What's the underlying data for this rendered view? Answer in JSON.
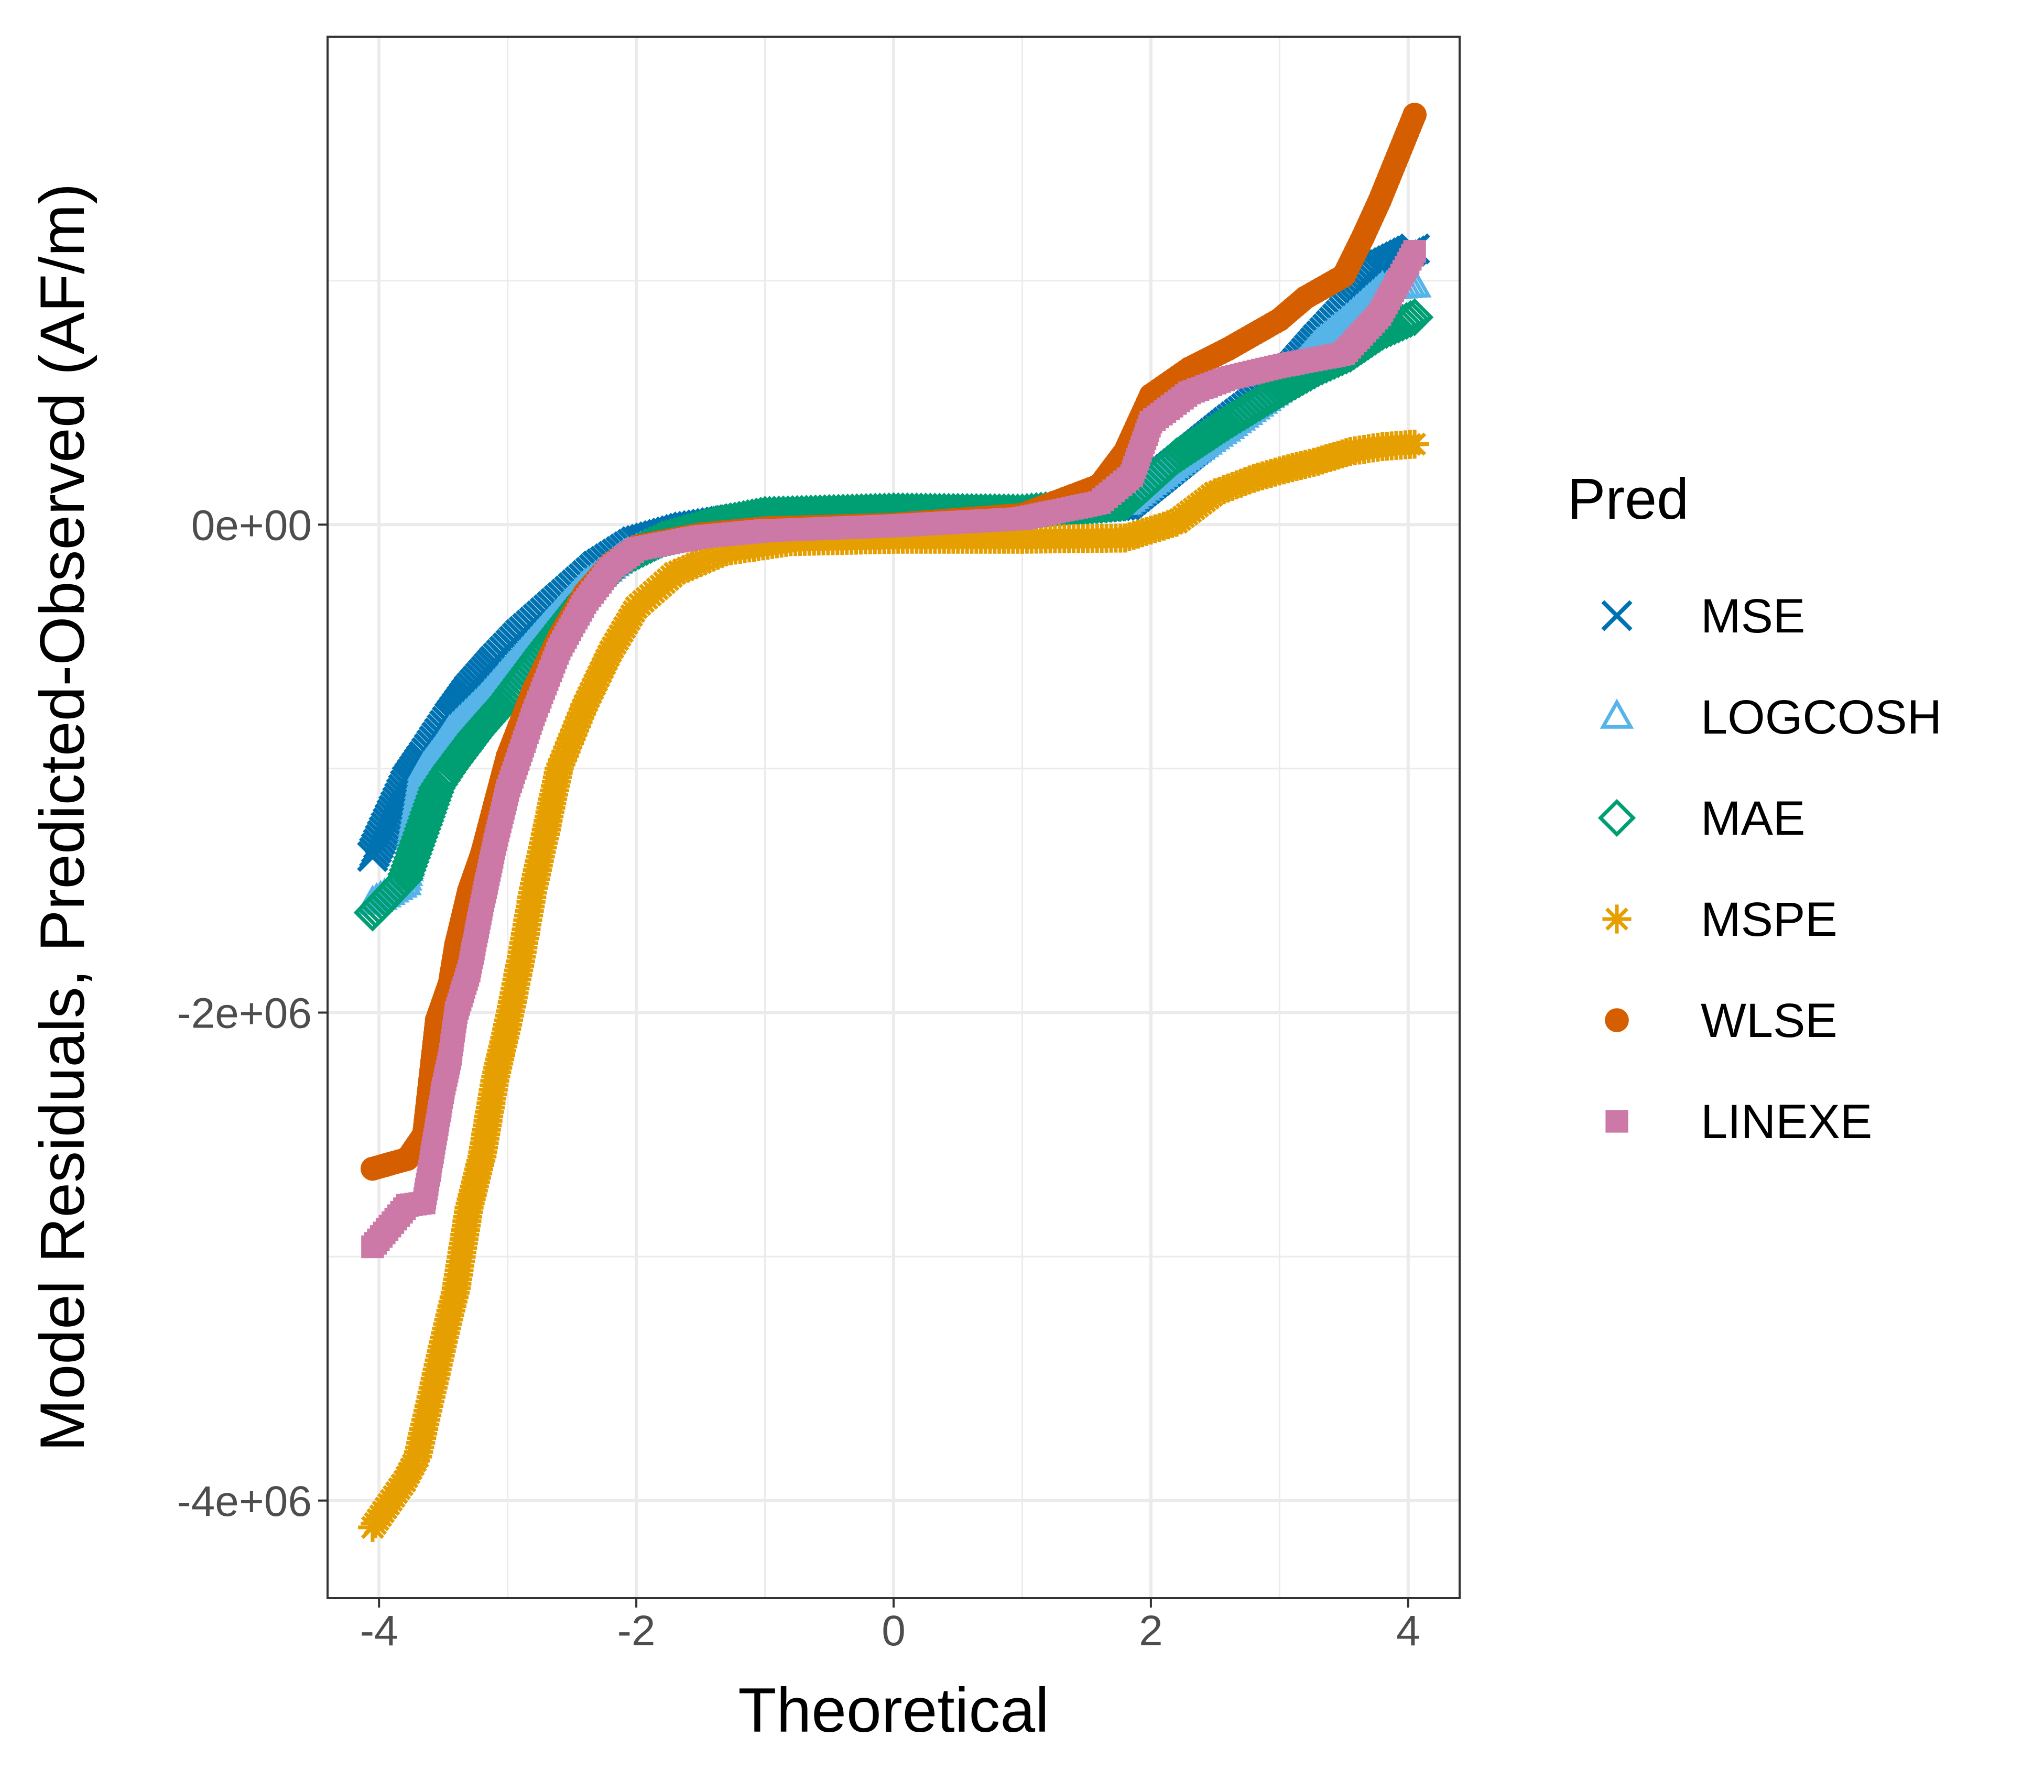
{
  "chart_data": {
    "type": "scatter",
    "title": "",
    "xlabel": "Theoretical",
    "ylabel": "Model Residuals, Predicted-Observed (AF/m)",
    "xlim": [
      -4.4,
      4.4
    ],
    "ylim": [
      -4400000,
      2000000
    ],
    "x_ticks": [
      -4,
      -2,
      0,
      2,
      4
    ],
    "x_tick_labels": [
      "-4",
      "-2",
      "0",
      "2",
      "4"
    ],
    "y_ticks": [
      0,
      -2000000,
      -4000000
    ],
    "y_tick_labels": [
      "0e+00",
      "-2e+06",
      "-4e+06"
    ],
    "x_minor_grid": [
      -3,
      -1,
      1,
      3
    ],
    "y_minor_grid": [
      1000000,
      -1000000,
      -3000000
    ],
    "grid": true,
    "legend": {
      "title": "Pred",
      "position": "right"
    },
    "series": [
      {
        "name": "MSE",
        "shape": "x",
        "color": "#0072B2",
        "points": [
          [
            -4.05,
            -1360000
          ],
          [
            -3.78,
            -1050000
          ],
          [
            -3.65,
            -950000
          ],
          [
            -3.55,
            -870000
          ],
          [
            -3.45,
            -790000
          ],
          [
            -3.3,
            -680000
          ],
          [
            -3.1,
            -560000
          ],
          [
            -2.9,
            -450000
          ],
          [
            -2.6,
            -310000
          ],
          [
            -2.3,
            -170000
          ],
          [
            -2.0,
            -70000
          ],
          [
            -1.6,
            -10000
          ],
          [
            -1.0,
            40000
          ],
          [
            0.0,
            50000
          ],
          [
            1.0,
            50000
          ],
          [
            1.8,
            80000
          ],
          [
            2.2,
            250000
          ],
          [
            2.6,
            420000
          ],
          [
            3.0,
            580000
          ],
          [
            3.3,
            760000
          ],
          [
            3.55,
            900000
          ],
          [
            3.75,
            1050000
          ],
          [
            4.05,
            1130000
          ]
        ]
      },
      {
        "name": "LOGCOSH",
        "shape": "triangle",
        "color": "#56B4E9",
        "points": [
          [
            -4.05,
            -1550000
          ],
          [
            -3.8,
            -1470000
          ],
          [
            -3.65,
            -1000000
          ],
          [
            -3.55,
            -930000
          ],
          [
            -3.45,
            -850000
          ],
          [
            -3.2,
            -720000
          ],
          [
            -3.0,
            -600000
          ],
          [
            -2.7,
            -420000
          ],
          [
            -2.4,
            -250000
          ],
          [
            -2.1,
            -130000
          ],
          [
            -1.8,
            -60000
          ],
          [
            -1.3,
            0
          ],
          [
            0.0,
            50000
          ],
          [
            1.0,
            55000
          ],
          [
            1.8,
            90000
          ],
          [
            2.2,
            250000
          ],
          [
            2.6,
            400000
          ],
          [
            3.0,
            560000
          ],
          [
            3.3,
            740000
          ],
          [
            3.55,
            850000
          ],
          [
            3.8,
            970000
          ],
          [
            4.05,
            980000
          ]
        ]
      },
      {
        "name": "MAE",
        "shape": "diamond",
        "color": "#009E73",
        "points": [
          [
            -4.05,
            -1590000
          ],
          [
            -3.8,
            -1450000
          ],
          [
            -3.65,
            -1230000
          ],
          [
            -3.55,
            -1080000
          ],
          [
            -3.45,
            -1000000
          ],
          [
            -3.25,
            -860000
          ],
          [
            -3.0,
            -710000
          ],
          [
            -2.7,
            -500000
          ],
          [
            -2.4,
            -300000
          ],
          [
            -2.1,
            -140000
          ],
          [
            -1.8,
            -60000
          ],
          [
            -1.4,
            0
          ],
          [
            -1.0,
            40000
          ],
          [
            0.0,
            55000
          ],
          [
            1.0,
            50000
          ],
          [
            1.8,
            90000
          ],
          [
            2.2,
            280000
          ],
          [
            2.6,
            420000
          ],
          [
            3.0,
            550000
          ],
          [
            3.3,
            640000
          ],
          [
            3.55,
            700000
          ],
          [
            3.8,
            790000
          ],
          [
            4.05,
            850000
          ]
        ]
      },
      {
        "name": "MSPE",
        "shape": "asterisk",
        "color": "#E69F00",
        "points": [
          [
            -4.05,
            -4110000
          ],
          [
            -3.8,
            -3920000
          ],
          [
            -3.7,
            -3820000
          ],
          [
            -3.5,
            -3350000
          ],
          [
            -3.4,
            -3130000
          ],
          [
            -3.3,
            -2800000
          ],
          [
            -3.2,
            -2590000
          ],
          [
            -3.1,
            -2280000
          ],
          [
            -3.0,
            -2050000
          ],
          [
            -2.9,
            -1790000
          ],
          [
            -2.8,
            -1490000
          ],
          [
            -2.7,
            -1250000
          ],
          [
            -2.6,
            -1000000
          ],
          [
            -2.4,
            -740000
          ],
          [
            -2.2,
            -520000
          ],
          [
            -2.0,
            -340000
          ],
          [
            -1.7,
            -200000
          ],
          [
            -1.3,
            -110000
          ],
          [
            -0.8,
            -70000
          ],
          [
            0.0,
            -60000
          ],
          [
            1.0,
            -60000
          ],
          [
            1.8,
            -55000
          ],
          [
            2.2,
            10000
          ],
          [
            2.5,
            130000
          ],
          [
            2.8,
            190000
          ],
          [
            3.0,
            220000
          ],
          [
            3.3,
            260000
          ],
          [
            3.55,
            300000
          ],
          [
            3.8,
            320000
          ],
          [
            4.05,
            330000
          ]
        ]
      },
      {
        "name": "WLSE",
        "shape": "circle",
        "color": "#D55E00",
        "points": [
          [
            -4.05,
            -2640000
          ],
          [
            -3.78,
            -2600000
          ],
          [
            -3.65,
            -2500000
          ],
          [
            -3.55,
            -2030000
          ],
          [
            -3.45,
            -1880000
          ],
          [
            -3.4,
            -1720000
          ],
          [
            -3.3,
            -1500000
          ],
          [
            -3.2,
            -1350000
          ],
          [
            -3.1,
            -1150000
          ],
          [
            -3.0,
            -950000
          ],
          [
            -2.8,
            -680000
          ],
          [
            -2.6,
            -460000
          ],
          [
            -2.4,
            -280000
          ],
          [
            -2.2,
            -160000
          ],
          [
            -2.0,
            -90000
          ],
          [
            -1.5,
            -40000
          ],
          [
            -1.0,
            -15000
          ],
          [
            0.0,
            0
          ],
          [
            1.0,
            40000
          ],
          [
            1.6,
            160000
          ],
          [
            1.8,
            300000
          ],
          [
            2.0,
            530000
          ],
          [
            2.3,
            640000
          ],
          [
            2.6,
            720000
          ],
          [
            3.0,
            840000
          ],
          [
            3.2,
            930000
          ],
          [
            3.5,
            1020000
          ],
          [
            3.65,
            1180000
          ],
          [
            3.78,
            1330000
          ],
          [
            4.05,
            1680000
          ]
        ]
      },
      {
        "name": "LINEXE",
        "shape": "square",
        "color": "#CC79A7",
        "points": [
          [
            -4.05,
            -2960000
          ],
          [
            -3.78,
            -2790000
          ],
          [
            -3.65,
            -2780000
          ],
          [
            -3.5,
            -2310000
          ],
          [
            -3.45,
            -2190000
          ],
          [
            -3.4,
            -2000000
          ],
          [
            -3.3,
            -1830000
          ],
          [
            -3.2,
            -1560000
          ],
          [
            -3.1,
            -1310000
          ],
          [
            -3.0,
            -1090000
          ],
          [
            -2.8,
            -780000
          ],
          [
            -2.6,
            -510000
          ],
          [
            -2.4,
            -320000
          ],
          [
            -2.2,
            -180000
          ],
          [
            -2.0,
            -100000
          ],
          [
            -1.5,
            -50000
          ],
          [
            -1.0,
            -25000
          ],
          [
            0.0,
            -5000
          ],
          [
            1.0,
            25000
          ],
          [
            1.6,
            90000
          ],
          [
            1.85,
            200000
          ],
          [
            2.0,
            420000
          ],
          [
            2.3,
            540000
          ],
          [
            2.6,
            600000
          ],
          [
            3.0,
            650000
          ],
          [
            3.5,
            700000
          ],
          [
            3.78,
            860000
          ],
          [
            4.05,
            1120000
          ]
        ]
      }
    ]
  }
}
